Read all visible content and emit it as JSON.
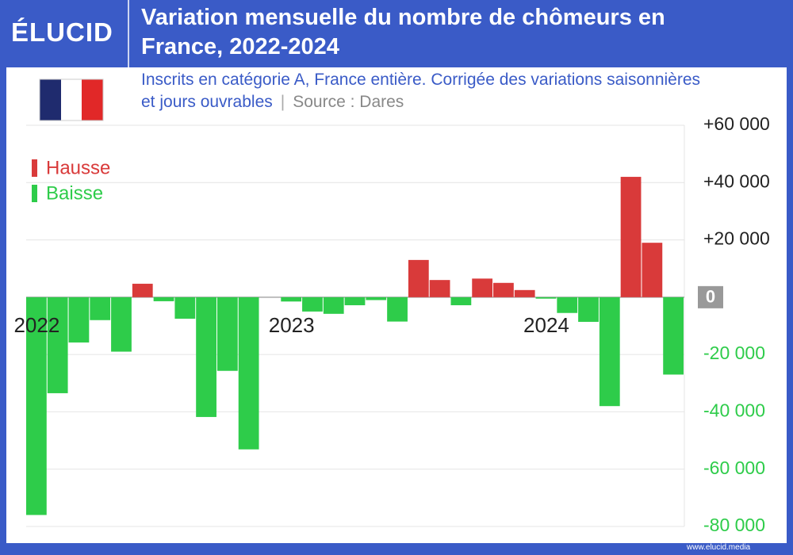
{
  "logo": "ÉLUCID",
  "footer": "www.elucid.media",
  "chart_data": {
    "type": "bar",
    "title": "Variation mensuelle du nombre de chômeurs en France, 2022-2024",
    "subtitle": "Inscrits en catégorie A, France entière. Corrigée des variations saisonnières et jours ouvrables",
    "source": "Source : Dares",
    "categories": [
      "2022",
      null,
      null,
      null,
      null,
      null,
      null,
      null,
      null,
      null,
      null,
      null,
      "2023",
      null,
      null,
      null,
      null,
      null,
      null,
      null,
      null,
      null,
      null,
      null,
      "2024",
      null,
      null,
      null,
      null,
      null,
      null
    ],
    "values": [
      -76000,
      -33500,
      -15800,
      -8000,
      -19000,
      4700,
      -1400,
      -7500,
      -41800,
      -25700,
      -53100,
      0,
      -1500,
      -5000,
      -5800,
      -2800,
      -1000,
      -8500,
      13000,
      6000,
      -2800,
      6500,
      5000,
      2500,
      -500,
      -5500,
      -8600,
      -38000,
      42000,
      19000,
      -27000
    ],
    "positive_color": "#d93a3a",
    "negative_color": "#2ecc4a",
    "legend": [
      {
        "name": "Hausse",
        "color": "#d93a3a"
      },
      {
        "name": "Baisse",
        "color": "#2ecc4a"
      }
    ],
    "ylim": [
      -80000,
      60000
    ],
    "yticks": [
      {
        "value": -80000,
        "label": "-80 000"
      },
      {
        "value": -60000,
        "label": "-60 000"
      },
      {
        "value": -40000,
        "label": "-40 000"
      },
      {
        "value": -20000,
        "label": "-20 000"
      },
      0,
      {
        "value": 20000,
        "label": "+20 000"
      },
      {
        "value": 40000,
        "label": "+40 000"
      },
      {
        "value": 60000,
        "label": "+60 000"
      }
    ],
    "grid": true
  }
}
